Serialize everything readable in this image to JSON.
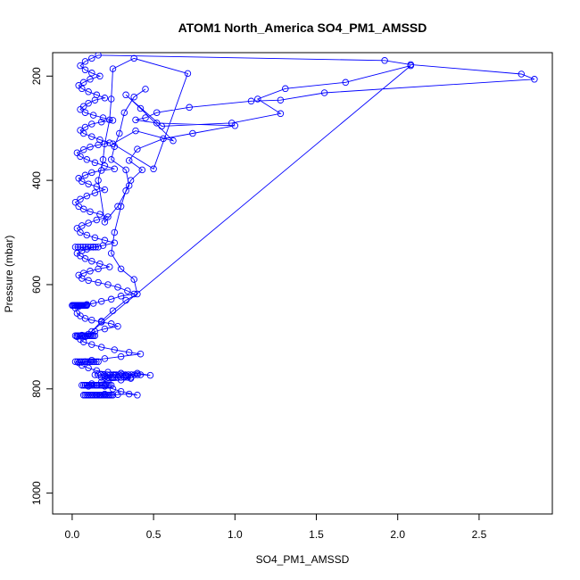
{
  "chart_data": {
    "type": "line",
    "title": "ATOM1 North_America SO4_PM1_AMSSD",
    "xlabel": "SO4_PM1_AMSSD",
    "ylabel": "Pressure (mbar)",
    "xlim": [
      -0.12,
      2.95
    ],
    "ylim": [
      1040,
      155
    ],
    "y_inverted": true,
    "grid": false,
    "legend": "none",
    "marker": "open-circle",
    "color": "#0000ff",
    "xticks": [
      0.0,
      0.5,
      1.0,
      1.5,
      2.0,
      2.5
    ],
    "xtick_labels": [
      "0.0",
      "0.5",
      "1.0",
      "1.5",
      "2.0",
      "2.5"
    ],
    "yticks": [
      200,
      400,
      600,
      800,
      1000
    ],
    "ytick_labels": [
      "200",
      "400",
      "600",
      "800",
      "1000"
    ],
    "series": [
      {
        "values": [
          [
            0.15,
            812
          ],
          [
            0.17,
            812
          ],
          [
            0.2,
            810
          ],
          [
            0.23,
            812
          ],
          [
            0.28,
            811
          ],
          [
            0.35,
            810
          ],
          [
            0.4,
            812
          ],
          [
            0.3,
            805
          ],
          [
            0.25,
            800
          ],
          [
            0.2,
            795
          ],
          [
            0.15,
            793
          ],
          [
            0.1,
            795
          ],
          [
            0.08,
            793
          ],
          [
            0.12,
            790
          ],
          [
            0.18,
            787
          ],
          [
            0.22,
            785
          ],
          [
            0.3,
            783
          ],
          [
            0.36,
            780
          ],
          [
            0.25,
            778
          ],
          [
            0.2,
            775
          ],
          [
            0.26,
            773
          ],
          [
            0.33,
            774
          ],
          [
            0.4,
            770
          ],
          [
            0.48,
            774
          ],
          [
            0.3,
            770
          ],
          [
            0.22,
            768
          ],
          [
            0.15,
            765
          ],
          [
            0.1,
            760
          ],
          [
            0.06,
            755
          ],
          [
            0.04,
            750
          ],
          [
            0.08,
            748
          ],
          [
            0.12,
            745
          ],
          [
            0.2,
            742
          ],
          [
            0.3,
            738
          ],
          [
            0.42,
            733
          ],
          [
            0.35,
            730
          ],
          [
            0.26,
            725
          ],
          [
            0.18,
            720
          ],
          [
            0.12,
            715
          ],
          [
            0.07,
            710
          ],
          [
            0.05,
            705
          ],
          [
            0.03,
            700
          ],
          [
            0.06,
            697
          ],
          [
            0.1,
            695
          ],
          [
            0.14,
            690
          ],
          [
            0.2,
            685
          ],
          [
            0.28,
            680
          ],
          [
            0.24,
            675
          ],
          [
            0.18,
            672
          ],
          [
            0.12,
            668
          ],
          [
            0.08,
            665
          ],
          [
            0.05,
            660
          ],
          [
            0.03,
            655
          ],
          [
            0.02,
            645
          ],
          [
            0.04,
            642
          ],
          [
            0.06,
            640
          ],
          [
            0.09,
            638
          ],
          [
            0.13,
            636
          ],
          [
            0.18,
            632
          ],
          [
            0.24,
            628
          ],
          [
            0.3,
            622
          ],
          [
            0.38,
            618
          ],
          [
            0.34,
            612
          ],
          [
            0.28,
            605
          ],
          [
            0.22,
            600
          ],
          [
            0.16,
            596
          ],
          [
            0.1,
            592
          ],
          [
            0.06,
            588
          ],
          [
            0.04,
            582
          ],
          [
            0.07,
            578
          ],
          [
            0.11,
            574
          ],
          [
            0.16,
            570
          ],
          [
            0.23,
            566
          ],
          [
            0.17,
            560
          ],
          [
            0.12,
            555
          ],
          [
            0.08,
            550
          ],
          [
            0.05,
            545
          ],
          [
            0.03,
            540
          ],
          [
            0.06,
            535
          ],
          [
            0.09,
            532
          ],
          [
            0.13,
            528
          ],
          [
            0.19,
            525
          ],
          [
            0.26,
            520
          ],
          [
            0.2,
            515
          ],
          [
            0.14,
            510
          ],
          [
            0.09,
            505
          ],
          [
            0.05,
            500
          ],
          [
            0.03,
            492
          ],
          [
            0.06,
            487
          ],
          [
            0.1,
            482
          ],
          [
            0.15,
            476
          ],
          [
            0.22,
            470
          ],
          [
            0.17,
            465
          ],
          [
            0.11,
            460
          ],
          [
            0.07,
            455
          ],
          [
            0.04,
            450
          ],
          [
            0.02,
            442
          ],
          [
            0.05,
            436
          ],
          [
            0.09,
            430
          ],
          [
            0.14,
            424
          ],
          [
            0.2,
            418
          ],
          [
            0.15,
            412
          ],
          [
            0.1,
            407
          ],
          [
            0.06,
            402
          ],
          [
            0.04,
            396
          ],
          [
            0.08,
            390
          ],
          [
            0.12,
            385
          ],
          [
            0.18,
            381
          ],
          [
            0.26,
            378
          ],
          [
            0.2,
            372
          ],
          [
            0.14,
            366
          ],
          [
            0.09,
            360
          ],
          [
            0.05,
            354
          ],
          [
            0.03,
            347
          ],
          [
            0.07,
            341
          ],
          [
            0.11,
            336
          ],
          [
            0.16,
            332
          ],
          [
            0.23,
            328
          ],
          [
            0.17,
            322
          ],
          [
            0.12,
            316
          ],
          [
            0.07,
            310
          ],
          [
            0.05,
            304
          ],
          [
            0.08,
            298
          ],
          [
            0.12,
            292
          ],
          [
            0.18,
            288
          ],
          [
            0.25,
            285
          ],
          [
            0.19,
            280
          ],
          [
            0.13,
            275
          ],
          [
            0.08,
            270
          ],
          [
            0.05,
            264
          ],
          [
            0.07,
            258
          ],
          [
            0.1,
            252
          ],
          [
            0.14,
            246
          ],
          [
            0.2,
            242
          ],
          [
            0.15,
            236
          ],
          [
            0.1,
            230
          ],
          [
            0.06,
            224
          ],
          [
            0.04,
            218
          ],
          [
            0.07,
            212
          ],
          [
            0.11,
            206
          ],
          [
            0.17,
            200
          ],
          [
            0.12,
            194
          ],
          [
            0.08,
            188
          ],
          [
            0.05,
            180
          ],
          [
            0.08,
            172
          ],
          [
            0.12,
            166
          ],
          [
            0.16,
            160
          ],
          [
            1.92,
            170
          ],
          [
            2.08,
            178
          ],
          [
            2.76,
            196
          ],
          [
            2.84,
            206
          ],
          [
            1.55,
            232
          ],
          [
            1.28,
            246
          ],
          [
            1.1,
            248
          ],
          [
            0.72,
            260
          ],
          [
            0.52,
            270
          ],
          [
            0.45,
            280
          ],
          [
            0.39,
            284
          ],
          [
            0.52,
            290
          ],
          [
            1.0,
            295
          ],
          [
            0.74,
            310
          ],
          [
            0.56,
            320
          ],
          [
            0.4,
            340
          ],
          [
            0.35,
            362
          ],
          [
            0.43,
            380
          ],
          [
            0.36,
            400
          ],
          [
            0.33,
            420
          ],
          [
            0.3,
            450
          ],
          [
            0.26,
            500
          ],
          [
            0.24,
            540
          ],
          [
            0.3,
            570
          ],
          [
            0.38,
            590
          ],
          [
            0.4,
            618
          ],
          [
            0.33,
            630
          ],
          [
            0.25,
            650
          ],
          [
            0.18,
            670
          ],
          [
            0.12,
            690
          ],
          [
            0.08,
            700
          ],
          [
            2.08,
            180
          ],
          [
            1.68,
            212
          ],
          [
            1.31,
            224
          ],
          [
            1.14,
            244
          ],
          [
            1.28,
            272
          ],
          [
            0.98,
            290
          ],
          [
            0.55,
            296
          ],
          [
            0.33,
            236
          ],
          [
            0.42,
            262
          ],
          [
            0.62,
            324
          ],
          [
            0.39,
            305
          ],
          [
            0.25,
            330
          ],
          [
            0.5,
            378
          ],
          [
            0.71,
            195
          ],
          [
            0.38,
            166
          ],
          [
            0.25,
            186
          ],
          [
            0.24,
            244
          ],
          [
            0.23,
            284
          ],
          [
            0.2,
            330
          ],
          [
            0.19,
            360
          ],
          [
            0.16,
            400
          ],
          [
            0.2,
            480
          ],
          [
            0.28,
            450
          ],
          [
            0.35,
            410
          ],
          [
            0.33,
            380
          ],
          [
            0.24,
            360
          ],
          [
            0.26,
            335
          ],
          [
            0.29,
            310
          ],
          [
            0.32,
            270
          ],
          [
            0.38,
            240
          ],
          [
            0.45,
            225
          ]
        ],
        "dense_rows": [
          {
            "pressure": 640,
            "x0": 0.0,
            "x1": 0.09,
            "n": 16
          },
          {
            "pressure": 698,
            "x0": 0.02,
            "x1": 0.14,
            "n": 14
          },
          {
            "pressure": 748,
            "x0": 0.02,
            "x1": 0.16,
            "n": 12
          },
          {
            "pressure": 773,
            "x0": 0.14,
            "x1": 0.42,
            "n": 16
          },
          {
            "pressure": 793,
            "x0": 0.06,
            "x1": 0.24,
            "n": 18
          },
          {
            "pressure": 812,
            "x0": 0.07,
            "x1": 0.25,
            "n": 20
          },
          {
            "pressure": 778,
            "x0": 0.18,
            "x1": 0.36,
            "n": 10
          },
          {
            "pressure": 528,
            "x0": 0.02,
            "x1": 0.16,
            "n": 10
          }
        ]
      }
    ]
  }
}
